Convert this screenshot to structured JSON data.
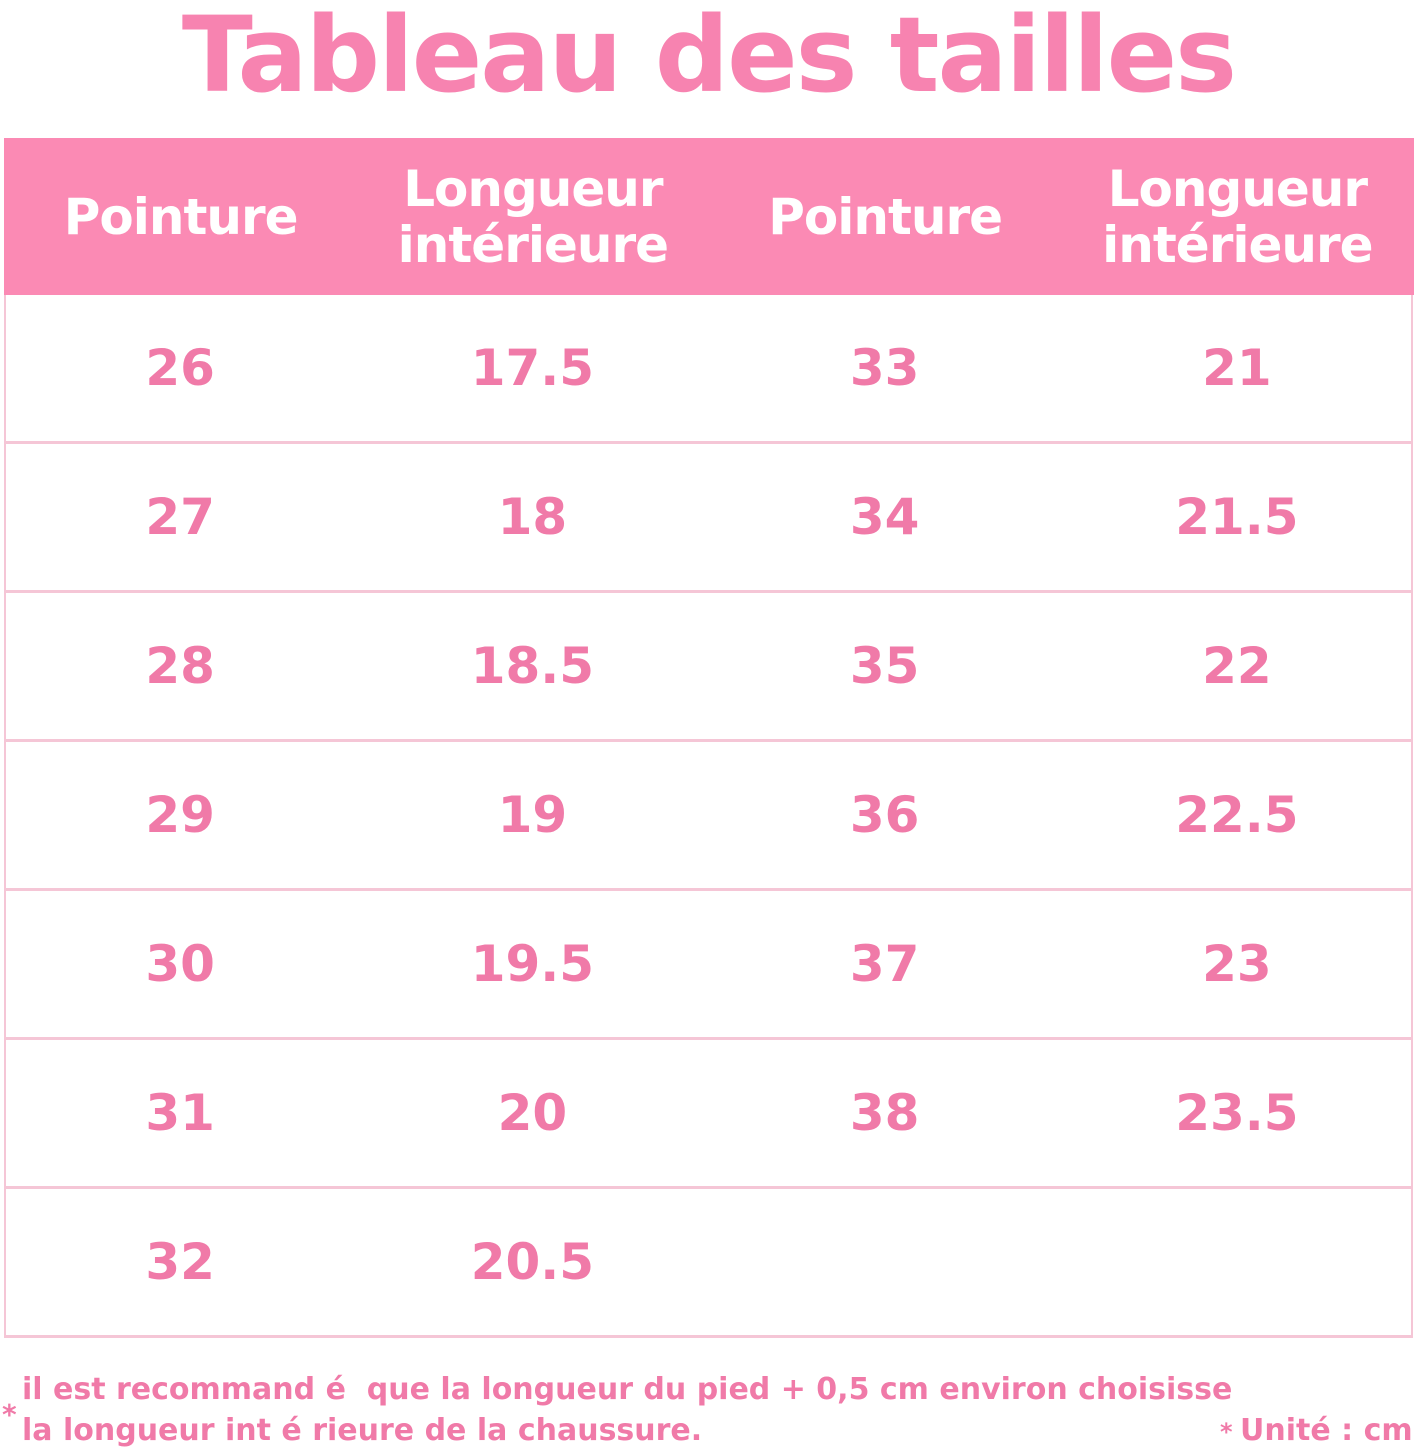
{
  "header": {
    "title": "Tableau des tailles"
  },
  "table": {
    "columns": [
      "Pointure",
      "Longueur intérieure",
      "Pointure",
      "Longueur intérieure"
    ],
    "rows": [
      [
        "26",
        "17.5",
        "33",
        "21"
      ],
      [
        "27",
        "18",
        "34",
        "21.5"
      ],
      [
        "28",
        "18.5",
        "35",
        "22"
      ],
      [
        "29",
        "19",
        "36",
        "22.5"
      ],
      [
        "30",
        "19.5",
        "37",
        "23"
      ],
      [
        "31",
        "20",
        "38",
        "23.5"
      ],
      [
        "32",
        "20.5"
      ]
    ]
  },
  "footer": {
    "asterisk": "*",
    "note_lines": [
      "il est recommand é  que la longueur du pied + 0,5 cm environ choisisse",
      "la longueur int é rieure de la chaussure."
    ],
    "unit_asterisk": "*",
    "unit": "Unité : cm"
  }
}
